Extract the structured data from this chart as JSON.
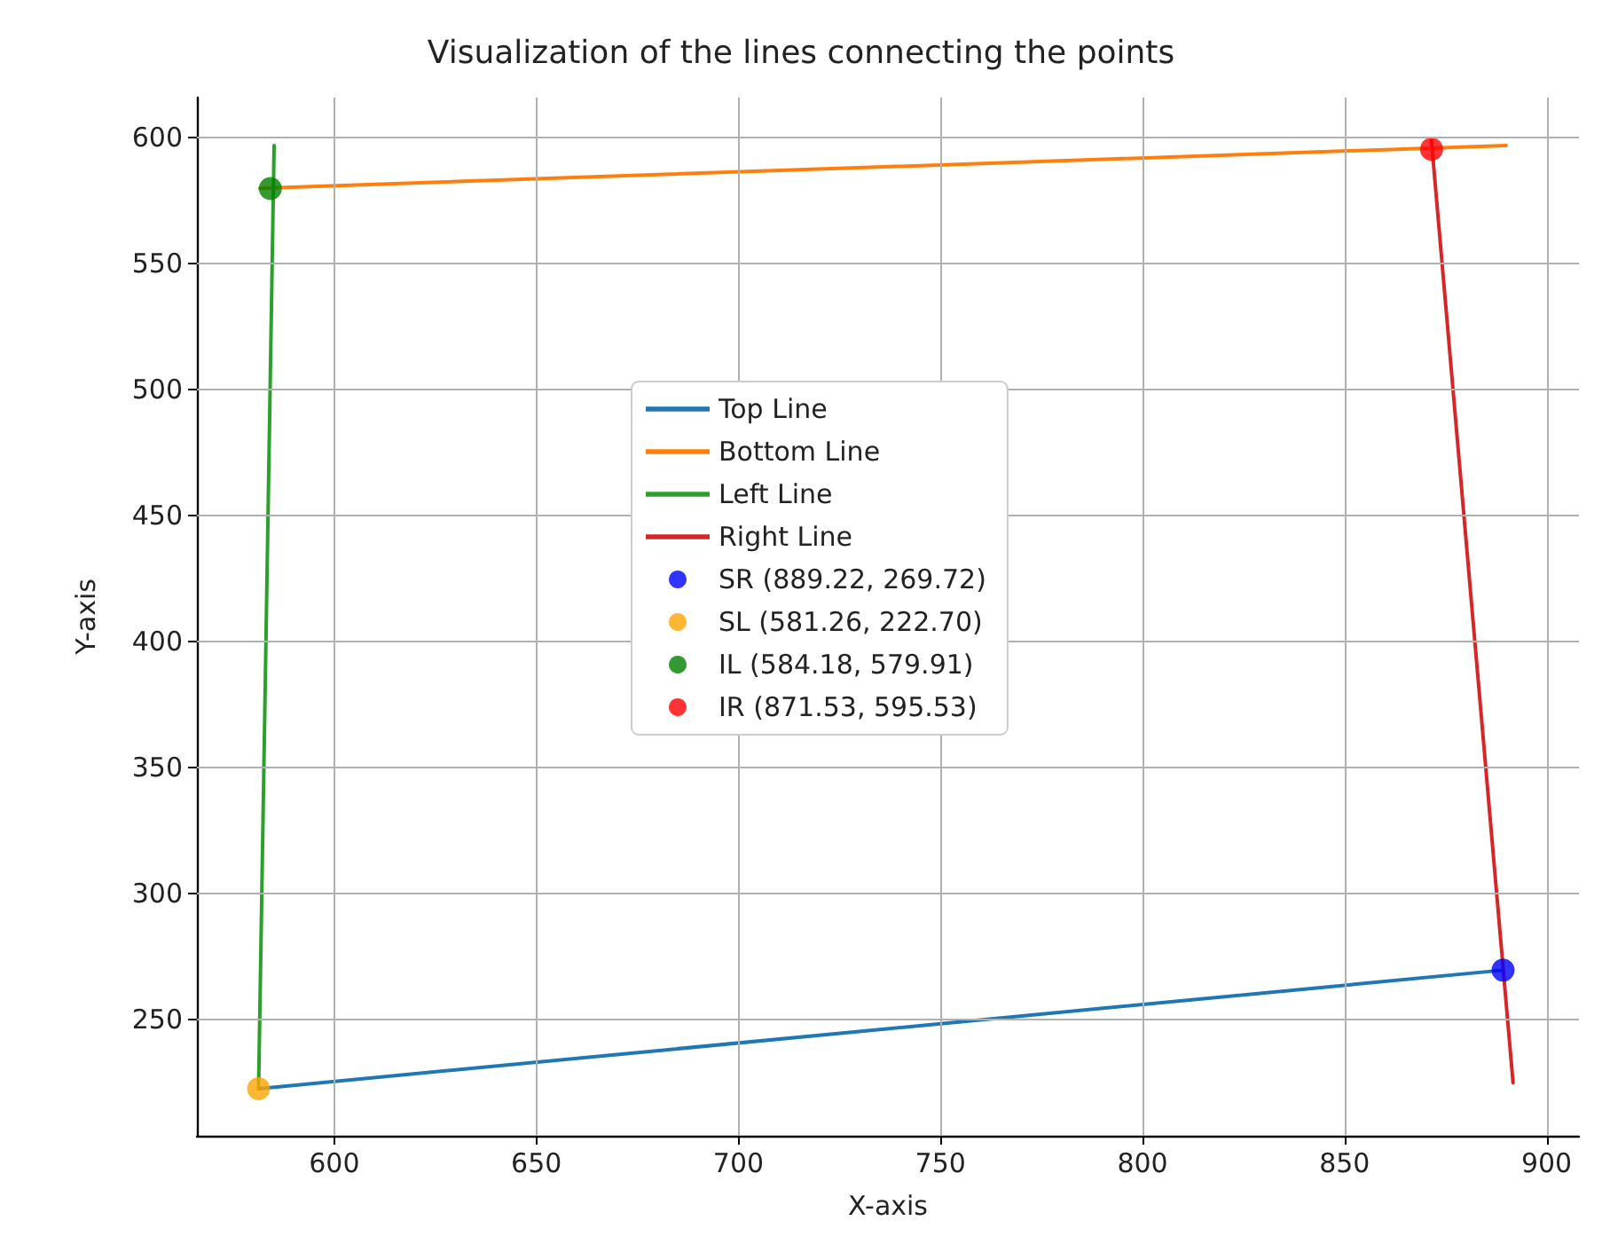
{
  "chart_data": {
    "type": "line",
    "title": "Visualization of the lines connecting the points",
    "xlabel": "X-axis",
    "ylabel": "Y-axis",
    "series": [
      {
        "name": "Top Line",
        "color": "#1f77b4",
        "x": [
          581.26,
          889.22
        ],
        "values": [
          222.7,
          269.72
        ]
      },
      {
        "name": "Bottom Line",
        "color": "#ff7f0e",
        "x": [
          581.5,
          890
        ],
        "values": [
          580,
          597
        ]
      },
      {
        "name": "Left Line",
        "color": "#2ca02c",
        "x": [
          581.26,
          585.1
        ],
        "values": [
          222.7,
          597
        ]
      },
      {
        "name": "Right Line",
        "color": "#d62728",
        "x": [
          871.5,
          891.7
        ],
        "values": [
          599,
          225
        ]
      },
      {
        "name": "SR (889.22, 269.72)",
        "type": "scatter",
        "color": "#0000ff",
        "x": [
          889.22
        ],
        "values": [
          269.72
        ]
      },
      {
        "name": "SL (581.26, 222.70)",
        "type": "scatter",
        "color": "#ffa500",
        "x": [
          581.26
        ],
        "values": [
          222.7
        ]
      },
      {
        "name": "IL (584.18, 579.91)",
        "type": "scatter",
        "color": "#008000",
        "x": [
          584.18
        ],
        "values": [
          579.91
        ]
      },
      {
        "name": "IR (871.53, 595.53)",
        "type": "scatter",
        "color": "#ff0000",
        "x": [
          871.53
        ],
        "values": [
          595.53
        ]
      }
    ],
    "xlim": [
      566,
      908
    ],
    "xticks": [
      600,
      650,
      700,
      750,
      800,
      850,
      900
    ],
    "ylim": [
      204,
      616
    ],
    "yticks": [
      250,
      300,
      350,
      400,
      450,
      500,
      550,
      600
    ],
    "grid": true,
    "legend": "center",
    "line_style": "solid"
  }
}
